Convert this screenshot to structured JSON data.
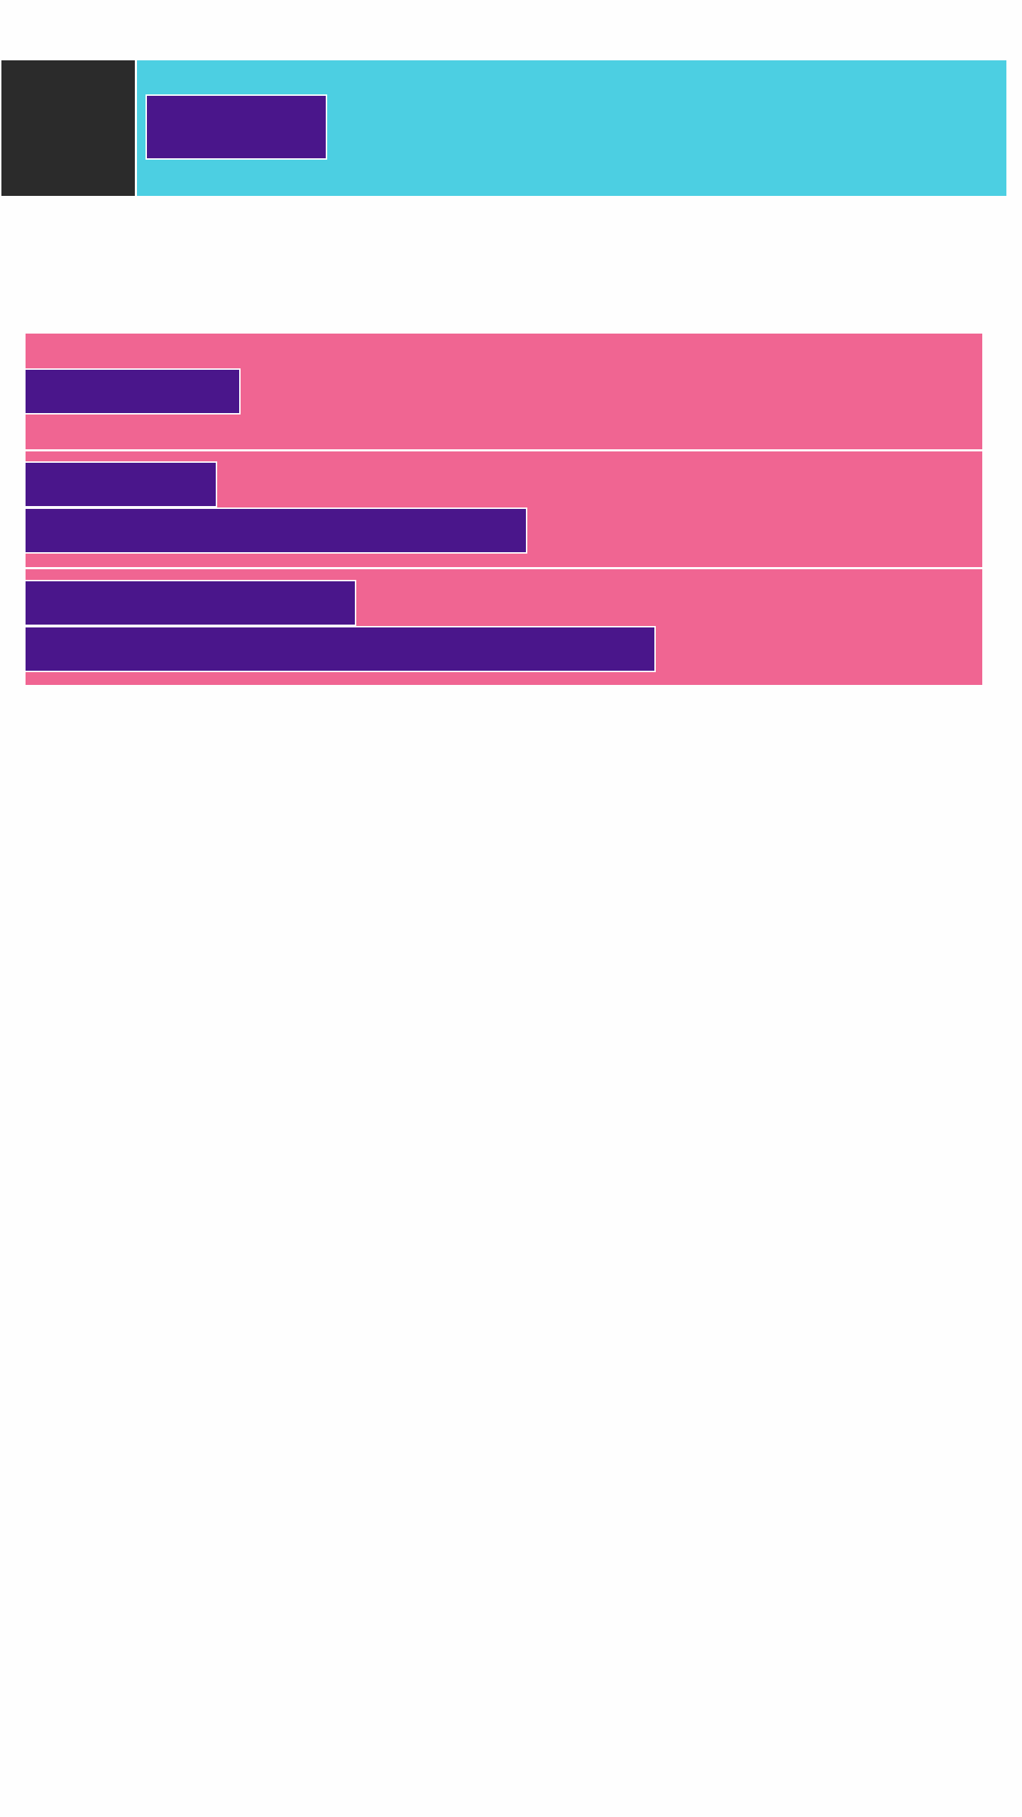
{
  "colors": {
    "page_background": "#fefefe",
    "logo_block": "#2b2b2b",
    "header_bar": "#4ccfe2",
    "button_fill": "#4a168b",
    "row_fill": "#f06592",
    "divider": "#ffffff"
  },
  "header": {
    "button_label": ""
  },
  "rows": [
    {
      "buttons": [
        {
          "label": ""
        }
      ]
    },
    {
      "buttons": [
        {
          "label": ""
        },
        {
          "label": ""
        }
      ]
    },
    {
      "buttons": [
        {
          "label": ""
        },
        {
          "label": ""
        }
      ]
    }
  ]
}
